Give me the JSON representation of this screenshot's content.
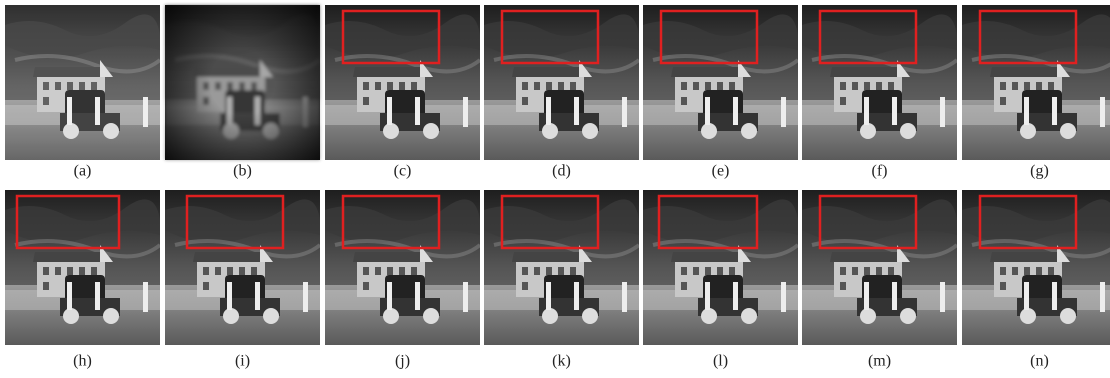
{
  "figure": {
    "panels": [
      {
        "label": "(a)"
      },
      {
        "label": "(b)"
      },
      {
        "label": "(c)"
      },
      {
        "label": "(d)"
      },
      {
        "label": "(e)"
      },
      {
        "label": "(f)"
      },
      {
        "label": "(g)"
      },
      {
        "label": "(h)"
      },
      {
        "label": "(i)"
      },
      {
        "label": "(j)"
      },
      {
        "label": "(k)"
      },
      {
        "label": "(l)"
      },
      {
        "label": "(m)"
      },
      {
        "label": "(n)"
      }
    ]
  }
}
